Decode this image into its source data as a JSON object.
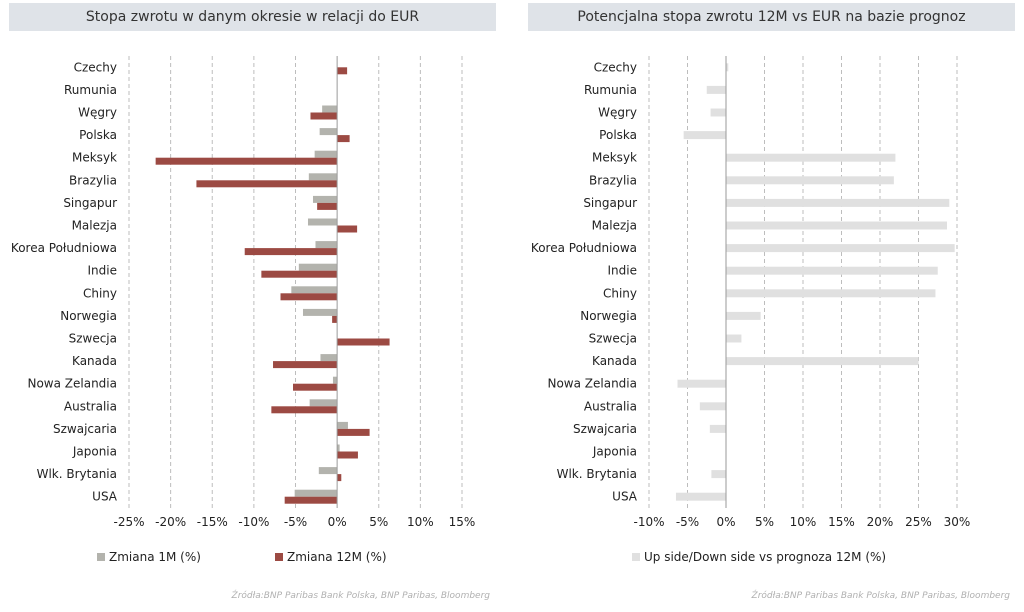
{
  "chart_data": [
    {
      "type": "bar",
      "orientation": "horizontal",
      "title": "Stopa zwrotu w danym okresie w relacji do EUR",
      "categories": [
        "Czechy",
        "Rumunia",
        "Węgry",
        "Polska",
        "Meksyk",
        "Brazylia",
        "Singapur",
        "Malezja",
        "Korea Południowa",
        "Indie",
        "Chiny",
        "Norwegia",
        "Szwecja",
        "Kanada",
        "Nowa Zelandia",
        "Australia",
        "Szwajcaria",
        "Japonia",
        "Wlk. Brytania",
        "USA"
      ],
      "series": [
        {
          "name": "Zmiana 1M (%)",
          "color": "#b3b3ad",
          "values": [
            0.0,
            0.0,
            -1.8,
            -2.1,
            -2.7,
            -3.4,
            -2.9,
            -3.5,
            -2.6,
            -4.6,
            -5.5,
            -4.1,
            0.0,
            -2.0,
            -0.5,
            -3.3,
            1.3,
            0.3,
            -2.2,
            -5.1
          ]
        },
        {
          "name": "Zmiana 12M (%)",
          "color": "#9c4a43",
          "values": [
            1.2,
            0.0,
            -3.2,
            1.5,
            -21.8,
            -16.9,
            -2.4,
            2.4,
            -11.1,
            -9.1,
            -6.8,
            -0.6,
            6.3,
            -7.7,
            -5.3,
            -7.9,
            3.9,
            2.5,
            0.5,
            -6.3
          ]
        }
      ],
      "xlim": [
        -25,
        15
      ],
      "ticks": [
        -25,
        -20,
        -15,
        -10,
        -5,
        0,
        5,
        10,
        15
      ],
      "tick_labels": [
        "-25%",
        "-20%",
        "-15%",
        "-10%",
        "-5%",
        "0%",
        "5%",
        "10%",
        "15%"
      ],
      "grid": "vertical dashed",
      "legend": "bottom"
    },
    {
      "type": "bar",
      "orientation": "horizontal",
      "title": "Potencjalna stopa zwrotu 12M vs EUR na bazie prognoz",
      "categories": [
        "Czechy",
        "Rumunia",
        "Węgry",
        "Polska",
        "Meksyk",
        "Brazylia",
        "Singapur",
        "Malezja",
        "Korea Południowa",
        "Indie",
        "Chiny",
        "Norwegia",
        "Szwecja",
        "Kanada",
        "Nowa Zelandia",
        "Australia",
        "Szwajcaria",
        "Japonia",
        "Wlk. Brytania",
        "USA"
      ],
      "series": [
        {
          "name": "Up side/Down side vs prognoza 12M (%)",
          "color": "#e0e0e0",
          "values": [
            0.3,
            -2.5,
            -2.0,
            -5.5,
            22.0,
            21.8,
            29.0,
            28.7,
            29.7,
            27.5,
            27.2,
            4.5,
            2.0,
            25.0,
            -6.3,
            -3.4,
            -2.1,
            0.0,
            -1.9,
            -6.5
          ]
        }
      ],
      "xlim": [
        -10,
        30
      ],
      "ticks": [
        -10,
        -5,
        0,
        5,
        10,
        15,
        20,
        25,
        30
      ],
      "tick_labels": [
        "-10%",
        "-5%",
        "0%",
        "5%",
        "10%",
        "15%",
        "20%",
        "25%",
        "30%"
      ],
      "grid": "vertical dashed",
      "legend": "bottom"
    }
  ],
  "sources": [
    "Źródła:BNP Paribas Bank Polska, BNP Paribas, Bloomberg",
    "Źródła:BNP Paribas Bank Polska, BNP Paribas, Bloomberg"
  ]
}
